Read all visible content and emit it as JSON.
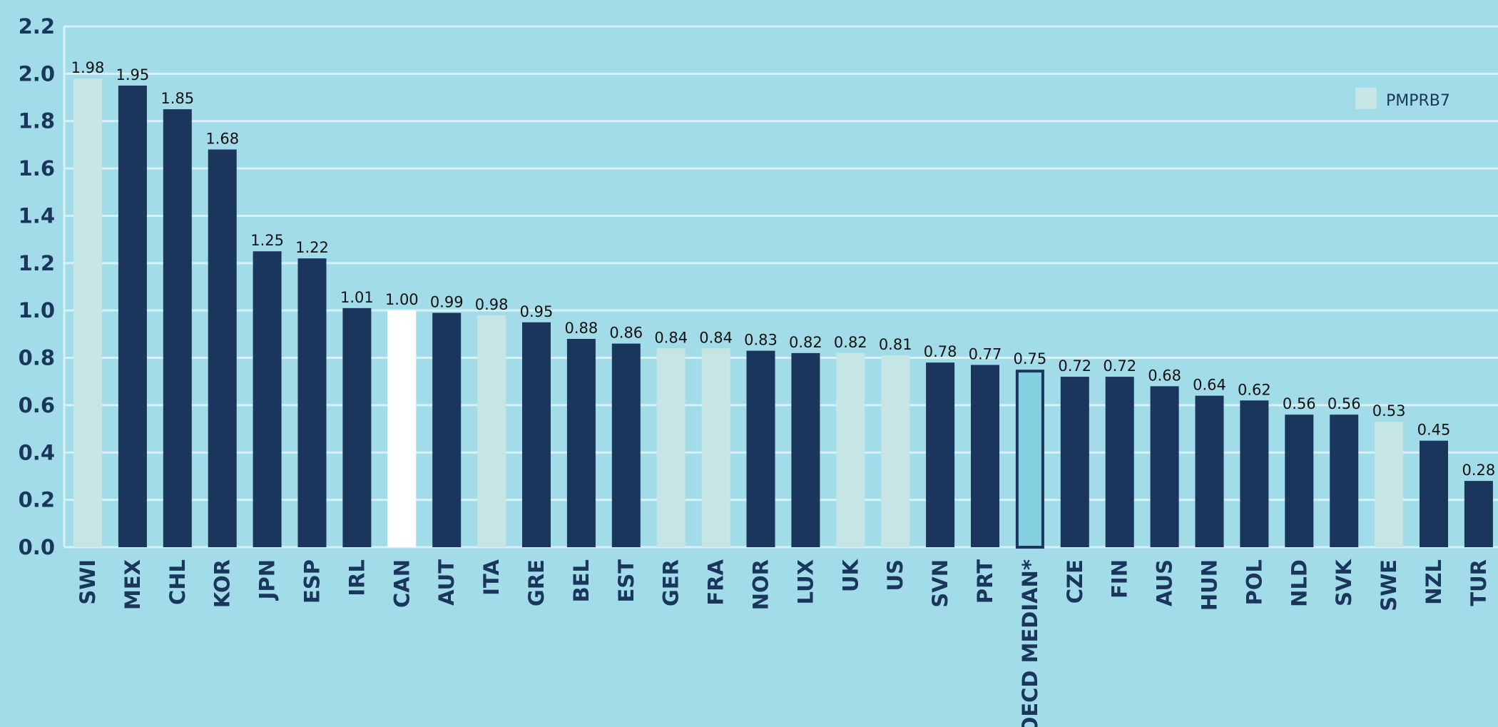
{
  "colors": {
    "background": "#a2dce8",
    "grid": "#d8f1f6",
    "dark_bar": "#1b365d",
    "pmprb7_bar": "#c6e6e6",
    "canada_bar": "#ffffff",
    "median_fill": "#86d1e1",
    "median_stroke": "#1b365d",
    "axis_text": "#1b365d"
  },
  "legend": {
    "label": "PMPRB7",
    "position": "top-right"
  },
  "chart_data": {
    "type": "bar",
    "categories": [
      "SWI",
      "MEX",
      "CHL",
      "KOR",
      "JPN",
      "ESP",
      "IRL",
      "CAN",
      "AUT",
      "ITA",
      "GRE",
      "BEL",
      "EST",
      "GER",
      "FRA",
      "NOR",
      "LUX",
      "UK",
      "US",
      "SVN",
      "PRT",
      "OECD MEDIAN*",
      "CZE",
      "FIN",
      "AUS",
      "HUN",
      "POL",
      "NLD",
      "SVK",
      "SWE",
      "NZL",
      "TUR"
    ],
    "values": [
      1.98,
      1.95,
      1.85,
      1.68,
      1.25,
      1.22,
      1.01,
      1.0,
      0.99,
      0.98,
      0.95,
      0.88,
      0.86,
      0.84,
      0.84,
      0.83,
      0.82,
      0.82,
      0.81,
      0.78,
      0.77,
      0.75,
      0.72,
      0.72,
      0.68,
      0.64,
      0.62,
      0.56,
      0.56,
      0.53,
      0.45,
      0.28
    ],
    "value_labels": [
      "1.98",
      "1.95",
      "1.85",
      "1.68",
      "1.25",
      "1.22",
      "1.01",
      "1.00",
      "0.99",
      "0.98",
      "0.95",
      "0.88",
      "0.86",
      "0.84",
      "0.84",
      "0.83",
      "0.82",
      "0.82",
      "0.81",
      "0.78",
      "0.77",
      "0.75",
      "0.72",
      "0.72",
      "0.68",
      "0.64",
      "0.62",
      "0.56",
      "0.56",
      "0.53",
      "0.45",
      "0.28"
    ],
    "groups": [
      "PMPRB7",
      "other",
      "other",
      "other",
      "other",
      "other",
      "other",
      "Canada",
      "other",
      "PMPRB7",
      "other",
      "other",
      "other",
      "PMPRB7",
      "PMPRB7",
      "other",
      "other",
      "PMPRB7",
      "PMPRB7",
      "other",
      "other",
      "median",
      "other",
      "other",
      "other",
      "other",
      "other",
      "other",
      "other",
      "PMPRB7",
      "other",
      "other"
    ],
    "yticks": [
      "0.0",
      "0.2",
      "0.4",
      "0.6",
      "0.8",
      "1.0",
      "1.2",
      "1.4",
      "1.6",
      "1.8",
      "2.0",
      "2.2"
    ],
    "ylim": [
      0,
      2.2
    ],
    "grid": true,
    "title": "",
    "xlabel": "",
    "ylabel": ""
  }
}
